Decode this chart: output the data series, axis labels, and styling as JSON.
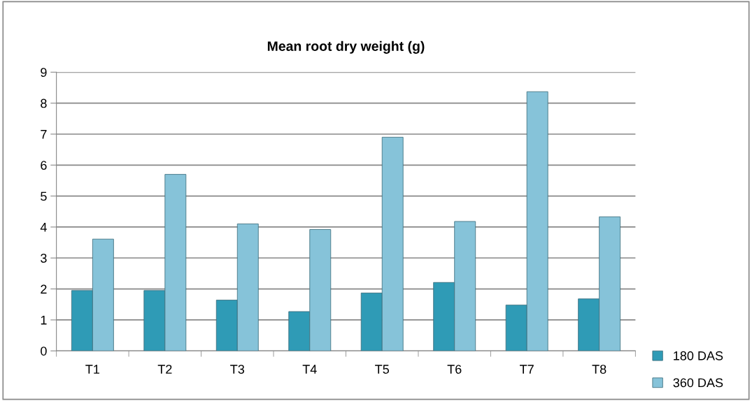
{
  "chart_data": {
    "type": "bar",
    "title": "Mean root dry weight (g)",
    "categories": [
      "T1",
      "T2",
      "T3",
      "T4",
      "T5",
      "T6",
      "T7",
      "T8"
    ],
    "series": [
      {
        "name": "180 DAS",
        "color": "#2f9bb6",
        "values": [
          1.95,
          1.95,
          1.64,
          1.27,
          1.87,
          2.21,
          1.48,
          1.68
        ]
      },
      {
        "name": "360 DAS",
        "color": "#86c3d9",
        "values": [
          3.61,
          5.7,
          4.1,
          3.92,
          6.9,
          4.18,
          8.37,
          4.33
        ]
      }
    ],
    "ylim": [
      0,
      9
    ],
    "yticks": [
      0,
      1,
      2,
      3,
      4,
      5,
      6,
      7,
      8,
      9
    ],
    "grid": "y",
    "legend": "bottom right"
  }
}
